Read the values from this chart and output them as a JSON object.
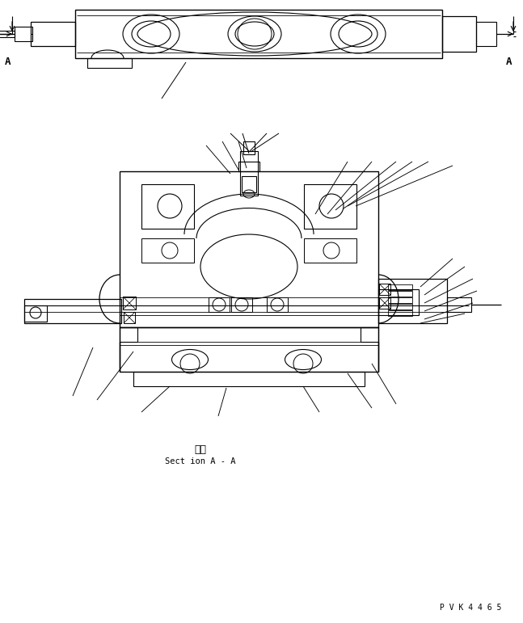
{
  "background_color": "#ffffff",
  "line_color": "#000000",
  "fig_width": 6.47,
  "fig_height": 7.71,
  "dpi": 100,
  "label_A_left": "A",
  "label_A_right": "A",
  "section_label_jp": "断面",
  "section_label_en": "Sect ion A - A",
  "part_number": "P V K 4 4 6 5"
}
